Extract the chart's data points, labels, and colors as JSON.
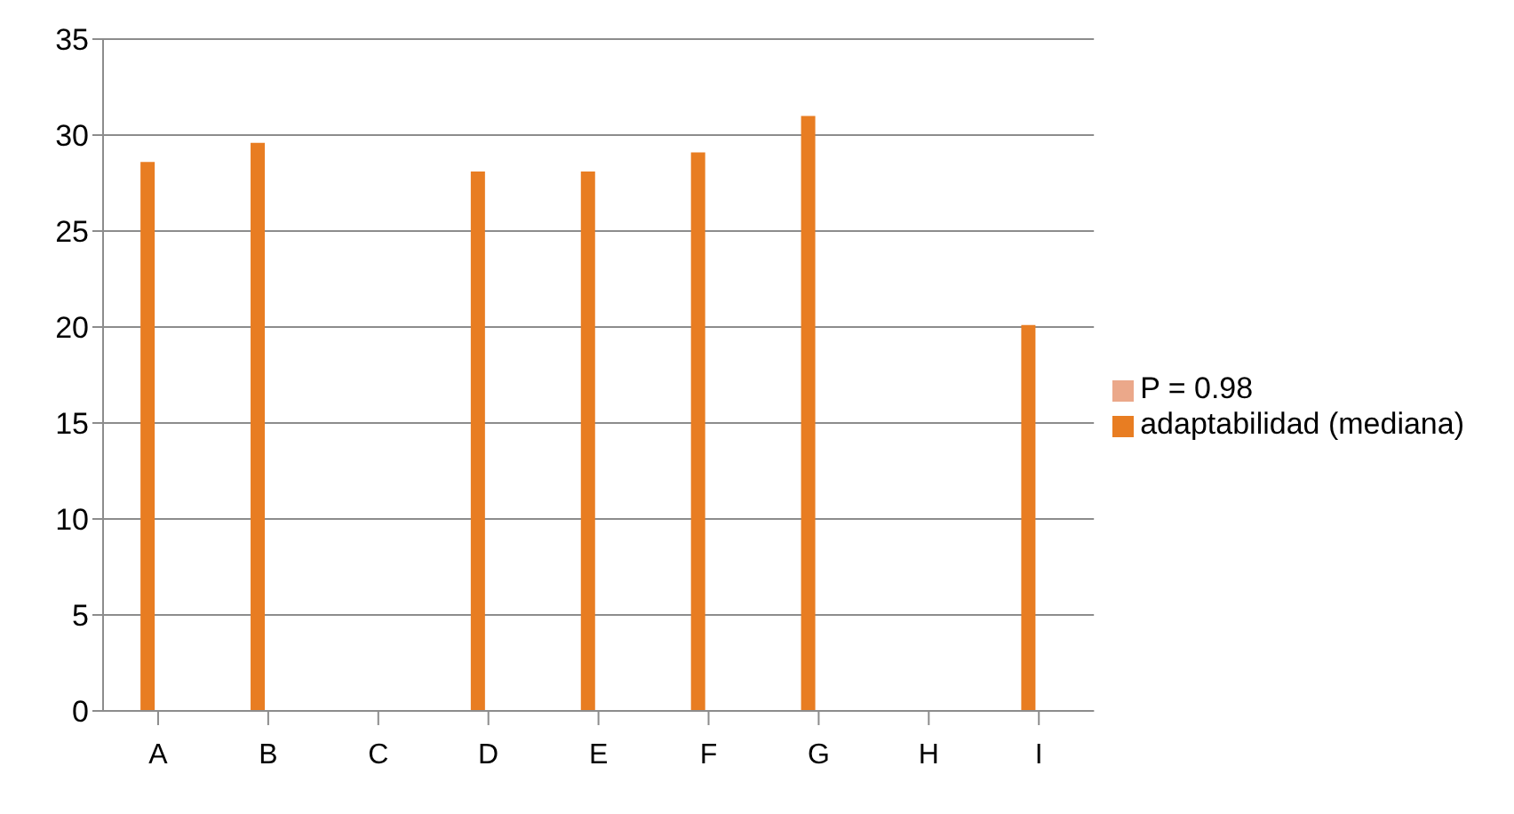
{
  "chart_data": {
    "type": "bar",
    "categories": [
      "A",
      "B",
      "C",
      "D",
      "E",
      "F",
      "G",
      "H",
      "I"
    ],
    "series": [
      {
        "name": "adaptabilidad (mediana)",
        "color": "#e87d22",
        "values": [
          28.6,
          29.6,
          null,
          28.1,
          28.1,
          29.1,
          31,
          null,
          20.1
        ]
      },
      {
        "name": "P = 0.98",
        "color": "#eba88a",
        "values": [
          null,
          null,
          null,
          null,
          null,
          null,
          null,
          null,
          null
        ]
      }
    ],
    "ylim": [
      0,
      35
    ],
    "yticks": [
      0,
      5,
      10,
      15,
      20,
      25,
      30,
      35
    ],
    "grid": "y",
    "legend": "right"
  }
}
